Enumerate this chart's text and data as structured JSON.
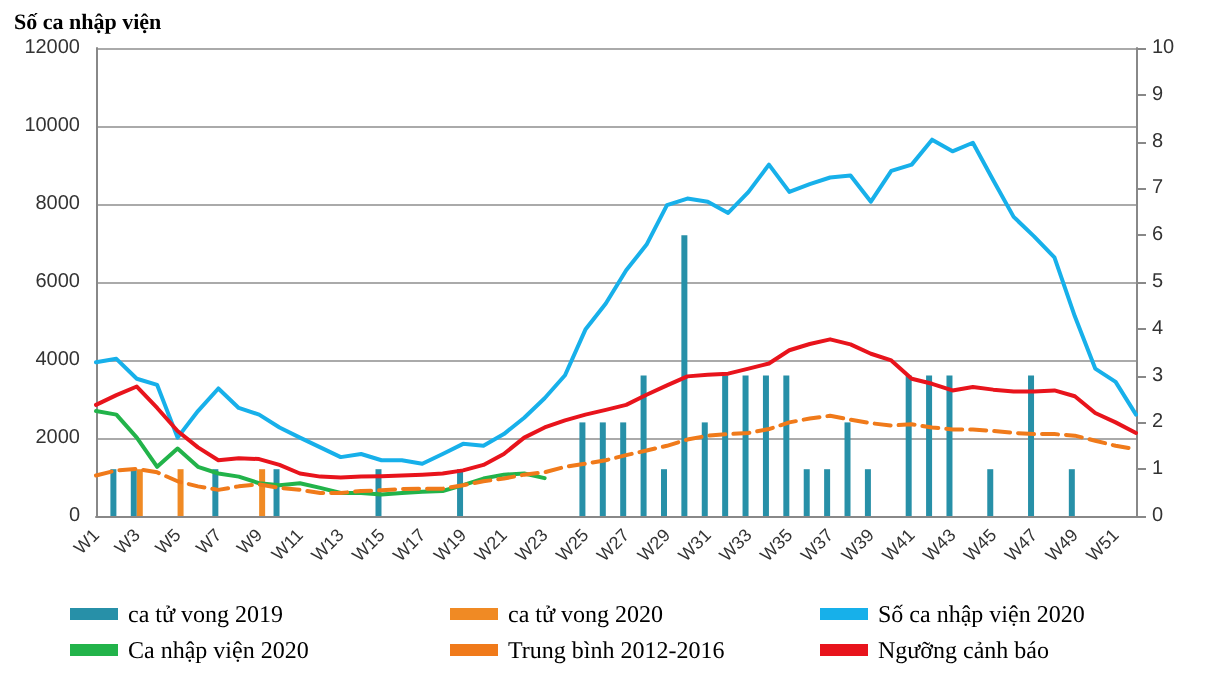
{
  "chart_data": {
    "type": "line",
    "ylabel": "Số ca nhập viện",
    "categories": [
      "W1",
      null,
      "W3",
      null,
      "W5",
      null,
      "W7",
      null,
      "W9",
      null,
      "W11",
      null,
      "W13",
      null,
      "W15",
      null,
      "W17",
      null,
      "W19",
      null,
      "W21",
      null,
      "W23",
      null,
      "W25",
      null,
      "W27",
      null,
      "W29",
      null,
      "W31",
      null,
      "W33",
      null,
      "W35",
      null,
      "W37",
      null,
      "W39",
      null,
      "W41",
      null,
      "W43",
      null,
      "W45",
      null,
      "W47",
      null,
      "W49",
      null,
      "W51",
      null
    ],
    "series": [
      {
        "name": "ca tử vong 2019",
        "type": "bar",
        "axis": "y2",
        "color": "#2790a8",
        "values": [
          null,
          1,
          1,
          null,
          null,
          null,
          1,
          null,
          null,
          1,
          null,
          null,
          null,
          null,
          1,
          null,
          null,
          null,
          1,
          null,
          null,
          null,
          null,
          null,
          2,
          2,
          2,
          3,
          1,
          6,
          2,
          3,
          3,
          3,
          3,
          1,
          1,
          2,
          1,
          null,
          3,
          3,
          3,
          null,
          1,
          null,
          3,
          null,
          1,
          null,
          null,
          null
        ]
      },
      {
        "name": "ca tử vong 2020",
        "type": "bar",
        "axis": "y2",
        "color": "#f08a24",
        "values": [
          null,
          null,
          1,
          null,
          1,
          null,
          null,
          null,
          1,
          null,
          null,
          null,
          null,
          null,
          null,
          null,
          null,
          null,
          null,
          null,
          null,
          null,
          null,
          null,
          null,
          null,
          null,
          null,
          null,
          null,
          null,
          null,
          null,
          null,
          null,
          null,
          null,
          null,
          null,
          null,
          null,
          null,
          null,
          null,
          null,
          null,
          null,
          null,
          null,
          null,
          null,
          null
        ]
      },
      {
        "name": "Số ca nhập viện 2020",
        "line_style": "solid",
        "color": "#17b0ea",
        "values": [
          3940,
          4030,
          3520,
          3360,
          2010,
          2690,
          3270,
          2770,
          2600,
          2270,
          2010,
          1760,
          1510,
          1590,
          1430,
          1430,
          1340,
          1590,
          1850,
          1800,
          2100,
          2520,
          3020,
          3610,
          4780,
          5450,
          6300,
          6960,
          7970,
          8140,
          8060,
          7770,
          8310,
          9010,
          8310,
          8510,
          8680,
          8730,
          8060,
          8850,
          9010,
          9650,
          9350,
          9570,
          8610,
          7670,
          7170,
          6630,
          5120,
          3780,
          3440,
          2600
        ]
      },
      {
        "name": "Ca nhập viện 2020",
        "line_style": "solid",
        "color": "#22b34a",
        "values": [
          2690,
          2600,
          2010,
          1260,
          1730,
          1260,
          1090,
          1010,
          840,
          790,
          840,
          720,
          590,
          590,
          550,
          590,
          620,
          640,
          790,
          960,
          1060,
          1090,
          970,
          null,
          null,
          null,
          null,
          null,
          null,
          null,
          null,
          null,
          null,
          null,
          null,
          null,
          null,
          null,
          null,
          null,
          null,
          null,
          null,
          null,
          null,
          null,
          null,
          null,
          null,
          null,
          null,
          null
        ]
      },
      {
        "name": "Trung bình 2012-2016",
        "line_style": "dashed",
        "color": "#f07a1a",
        "values": [
          1040,
          1170,
          1210,
          1120,
          890,
          760,
          670,
          760,
          810,
          720,
          670,
          590,
          590,
          640,
          660,
          690,
          700,
          700,
          790,
          890,
          960,
          1060,
          1120,
          1260,
          1340,
          1430,
          1560,
          1680,
          1800,
          1960,
          2060,
          2100,
          2130,
          2230,
          2400,
          2500,
          2570,
          2470,
          2380,
          2320,
          2350,
          2270,
          2220,
          2220,
          2180,
          2130,
          2100,
          2100,
          2060,
          1930,
          1800,
          1710
        ]
      },
      {
        "name": "Ngưỡng cảnh báo",
        "line_style": "solid",
        "color": "#e8141c",
        "values": [
          2850,
          3100,
          3320,
          2770,
          2180,
          1760,
          1430,
          1480,
          1460,
          1310,
          1090,
          1010,
          990,
          1010,
          1020,
          1040,
          1060,
          1090,
          1170,
          1310,
          1590,
          2010,
          2270,
          2450,
          2600,
          2720,
          2850,
          3110,
          3350,
          3580,
          3620,
          3650,
          3780,
          3910,
          4250,
          4410,
          4530,
          4400,
          4160,
          3990,
          3520,
          3390,
          3220,
          3310,
          3240,
          3190,
          3190,
          3220,
          3070,
          2640,
          2400,
          2130
        ]
      }
    ],
    "ylim": [
      0,
      12000
    ],
    "yticks": [
      0,
      2000,
      4000,
      6000,
      8000,
      10000,
      12000
    ],
    "y2lim": [
      0,
      10
    ],
    "y2ticks": [
      0,
      1,
      2,
      3,
      4,
      5,
      6,
      7,
      8,
      9,
      10
    ],
    "grid": "y",
    "legend": "bottom",
    "marker": "none"
  }
}
